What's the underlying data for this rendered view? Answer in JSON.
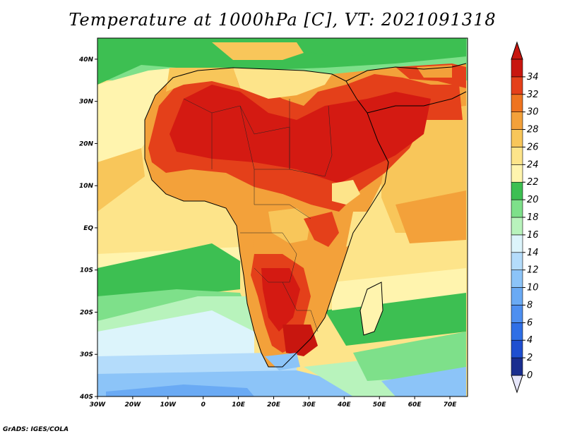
{
  "title": "Temperature at 1000hPa [C], VT: 2021091318",
  "credit": "GrADS: IGES/COLA",
  "map": {
    "lon_range": [
      -30,
      75
    ],
    "lat_range": [
      -40,
      45
    ],
    "lat_ticks": [
      "40N",
      "30N",
      "20N",
      "10N",
      "EQ",
      "10S",
      "20S",
      "30S",
      "40S"
    ],
    "lon_ticks": [
      "30W",
      "20W",
      "10W",
      "0",
      "10E",
      "20E",
      "30E",
      "40E",
      "50E",
      "60E",
      "70E"
    ]
  },
  "colorbar": {
    "levels": [
      "0",
      "2",
      "4",
      "6",
      "8",
      "10",
      "12",
      "14",
      "16",
      "18",
      "20",
      "22",
      "24",
      "26",
      "28",
      "30",
      "32",
      "34"
    ],
    "colors": [
      "#1a2e8f",
      "#1f4fd0",
      "#2f6fe6",
      "#4e8ff0",
      "#6aaaf4",
      "#8cc4f8",
      "#b4dcfb",
      "#dcf4fb",
      "#b8f3bc",
      "#7ee08a",
      "#3dbf52",
      "#fff4ae",
      "#fde48a",
      "#f8c65a",
      "#f3a13a",
      "#ee7420",
      "#e4401a",
      "#c8160f"
    ],
    "below_color": "#e6e6fa"
  }
}
